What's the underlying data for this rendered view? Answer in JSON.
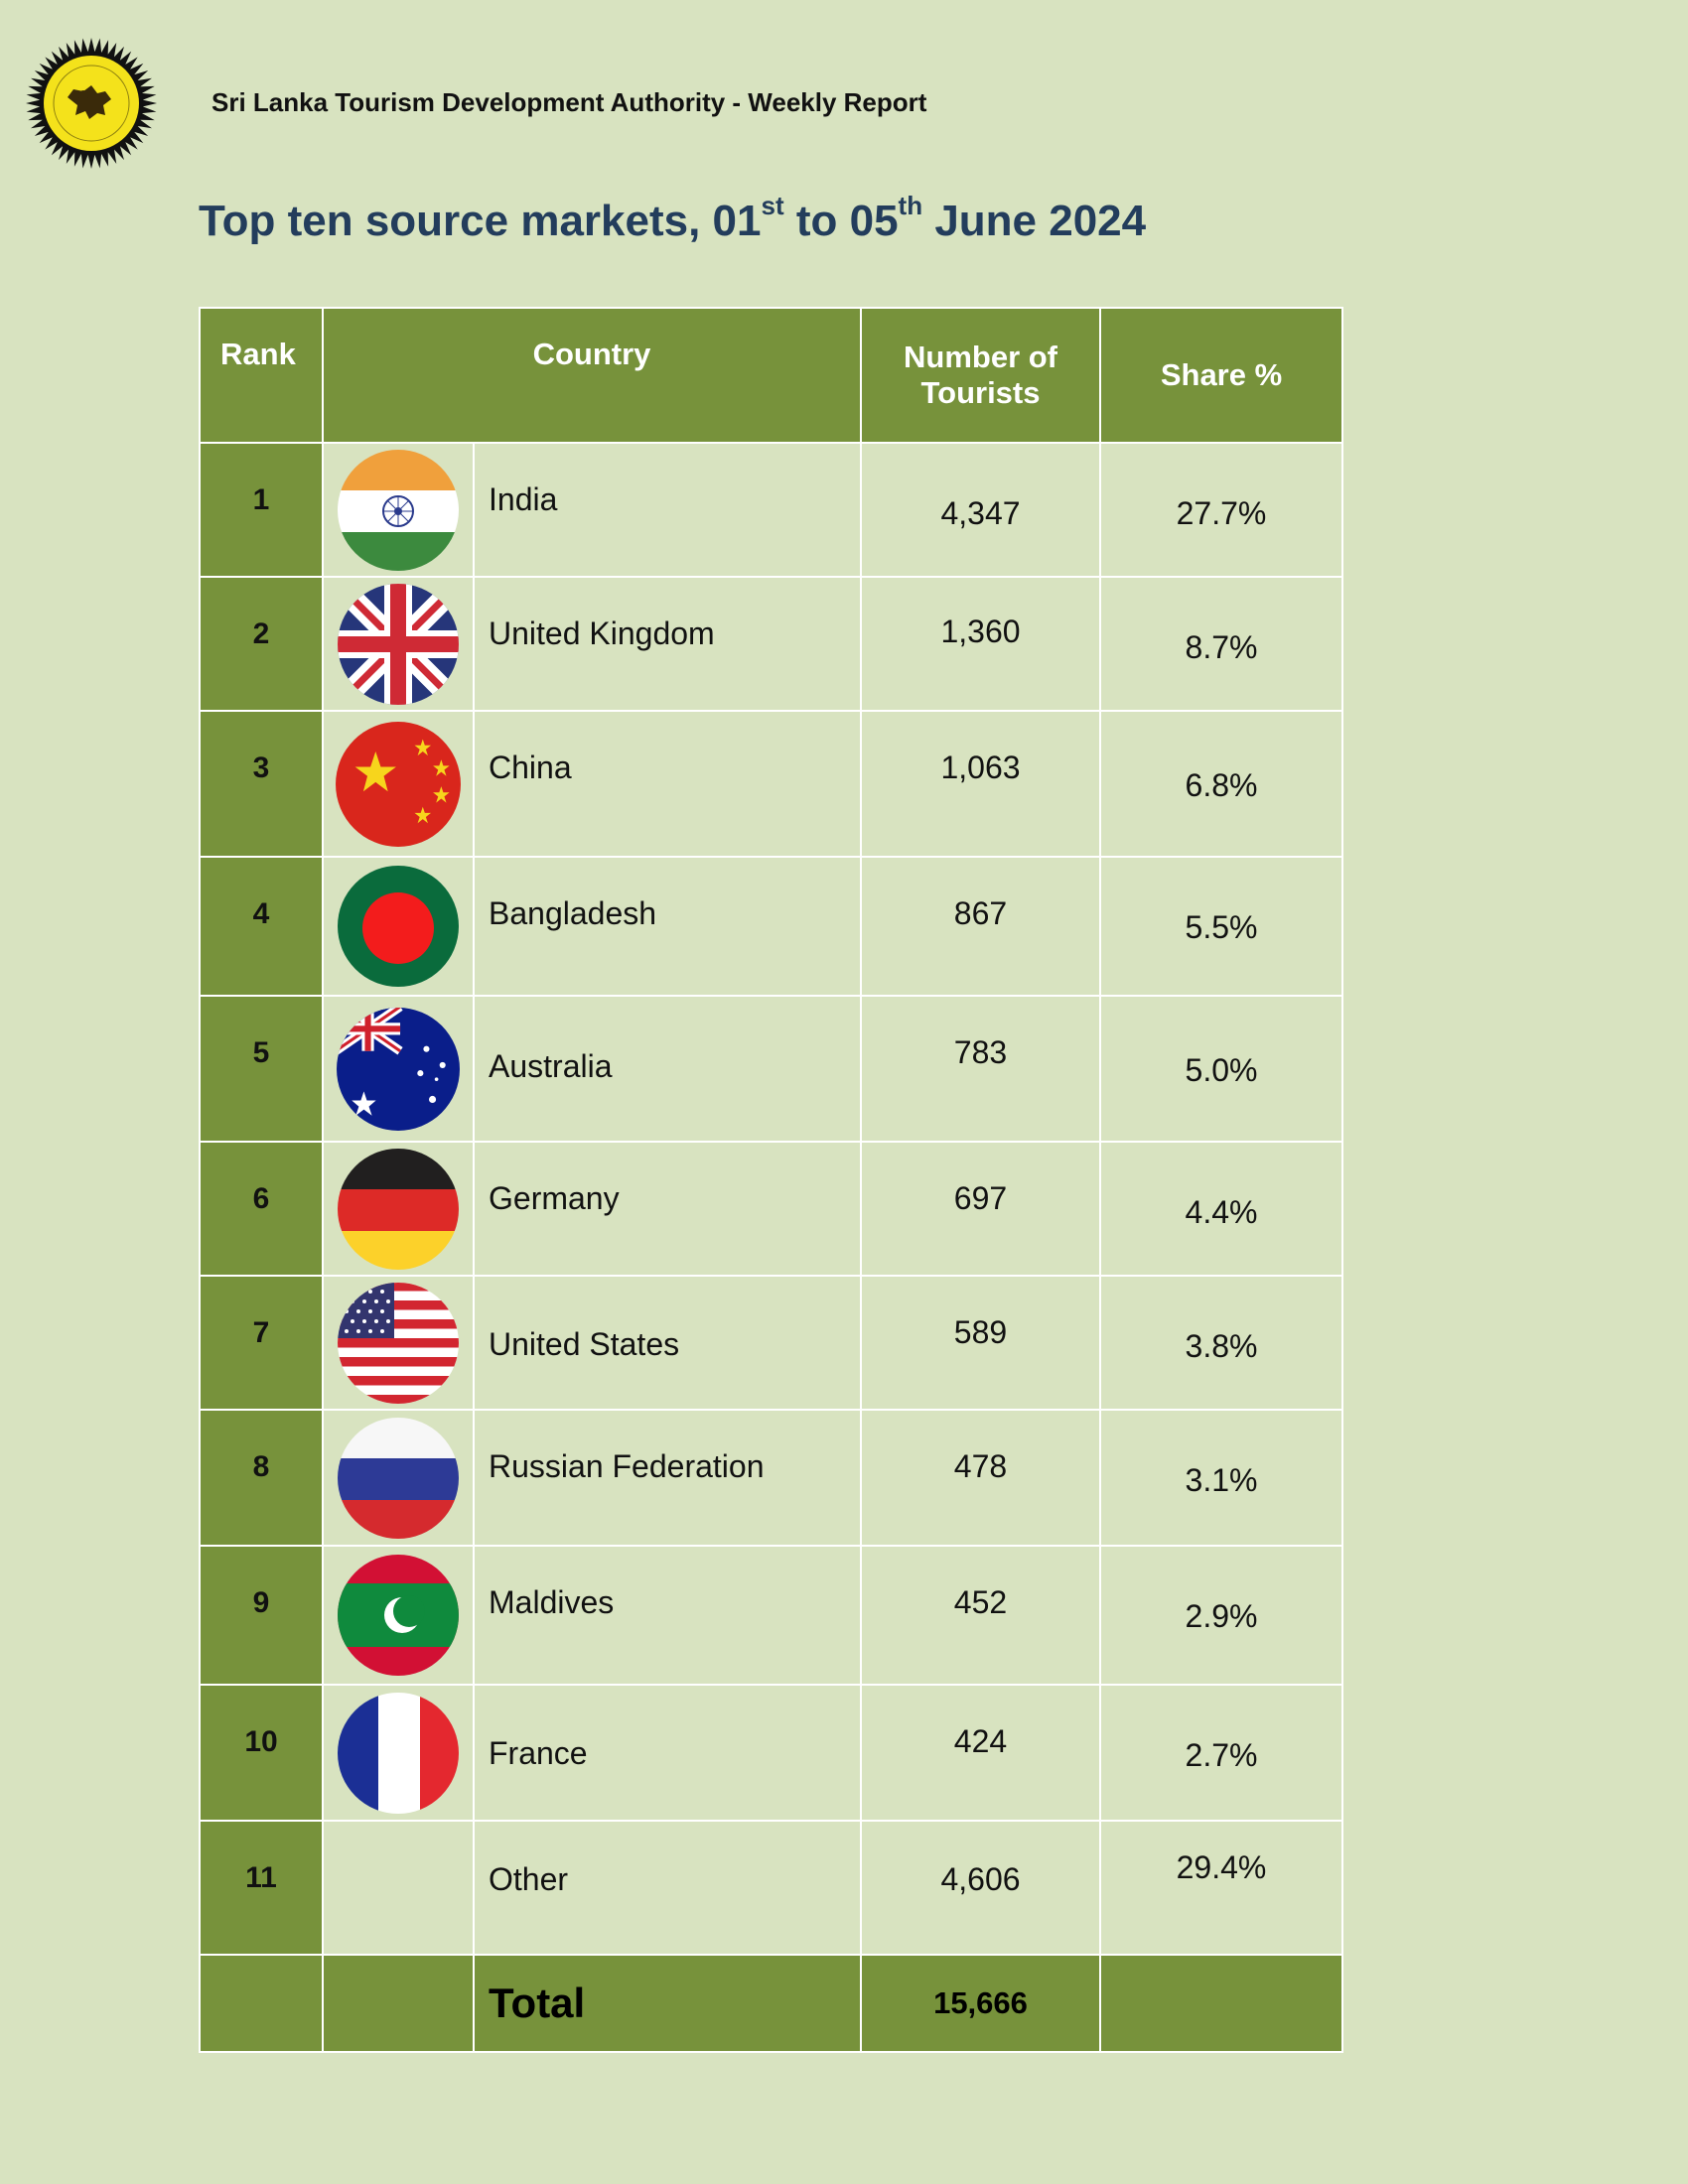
{
  "header": {
    "organization": "Sri Lanka Tourism Development Authority - Weekly Report",
    "logo_icon": "sri-lanka-tourism-lion-emblem"
  },
  "title": {
    "main": "Top ten source markets, 01",
    "sup1": "st",
    "mid": " to 05",
    "sup2": "th",
    "end": " June 2024"
  },
  "table": {
    "headers": {
      "rank": "Rank",
      "country": "Country",
      "tourists_line1": "Number of",
      "tourists_line2": "Tourists",
      "share": "Share %"
    },
    "rows": [
      {
        "rank": "1",
        "country": "India",
        "tourists": "4,347",
        "share": "27.7%",
        "flag": "india-flag-icon"
      },
      {
        "rank": "2",
        "country": "United Kingdom",
        "tourists": "1,360",
        "share": "8.7%",
        "flag": "united-kingdom-flag-icon"
      },
      {
        "rank": "3",
        "country": "China",
        "tourists": "1,063",
        "share": "6.8%",
        "flag": "china-flag-icon"
      },
      {
        "rank": "4",
        "country": "Bangladesh",
        "tourists": "867",
        "share": "5.5%",
        "flag": "bangladesh-flag-icon"
      },
      {
        "rank": "5",
        "country": "Australia",
        "tourists": "783",
        "share": "5.0%",
        "flag": "australia-flag-icon"
      },
      {
        "rank": "6",
        "country": "Germany",
        "tourists": "697",
        "share": "4.4%",
        "flag": "germany-flag-icon"
      },
      {
        "rank": "7",
        "country": "United States",
        "tourists": "589",
        "share": "3.8%",
        "flag": "united-states-flag-icon"
      },
      {
        "rank": "8",
        "country": "Russian Federation",
        "tourists": "478",
        "share": "3.1%",
        "flag": "russia-flag-icon"
      },
      {
        "rank": "9",
        "country": "Maldives",
        "tourists": "452",
        "share": "2.9%",
        "flag": "maldives-flag-icon"
      },
      {
        "rank": "10",
        "country": "France",
        "tourists": "424",
        "share": "2.7%",
        "flag": "france-flag-icon"
      },
      {
        "rank": "11",
        "country": "Other",
        "tourists": "4,606",
        "share": "29.4%"
      }
    ],
    "total": {
      "label": "Total",
      "tourists": "15,666"
    }
  },
  "colors": {
    "page_background": "#d8e3c0",
    "table_accent": "#77923b",
    "title": "#233d5c"
  }
}
